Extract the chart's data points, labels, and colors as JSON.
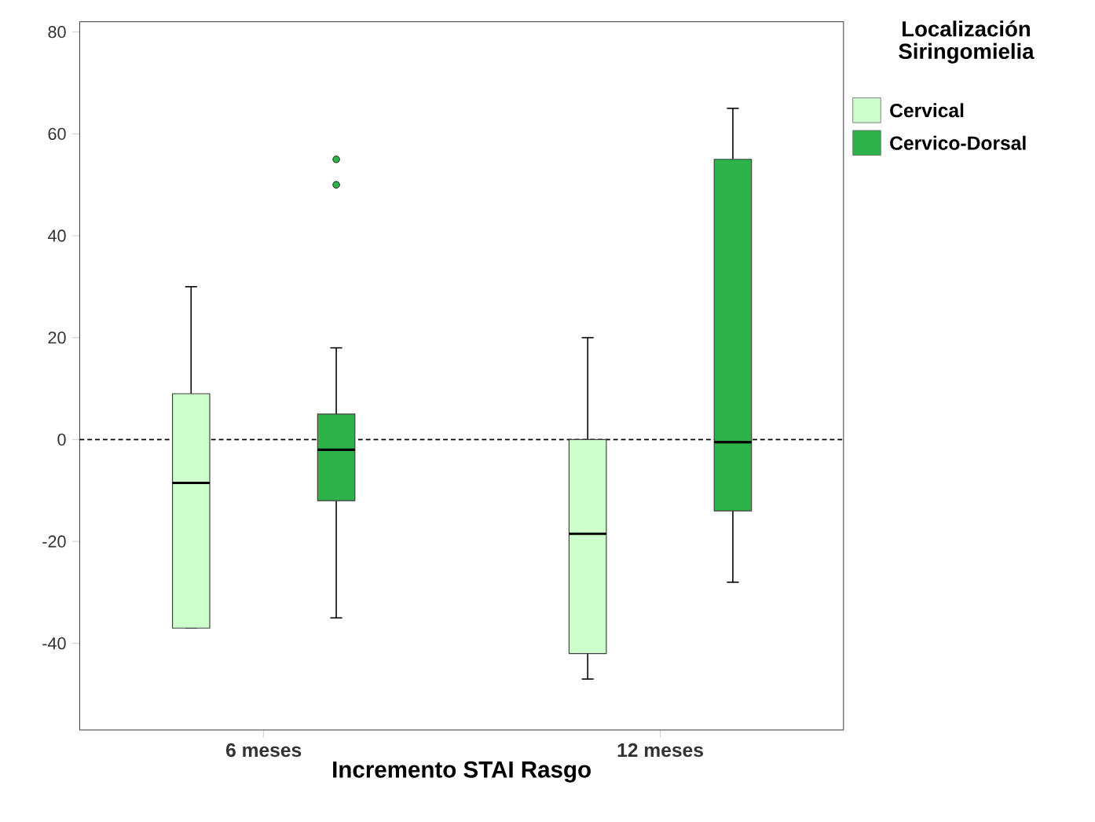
{
  "chart_data": {
    "type": "box",
    "xlabel": "Incremento STAI Rasgo",
    "legend_title": "Localización Siringomielia",
    "categories": [
      "6 meses",
      "12 meses"
    ],
    "series": [
      {
        "name": "Cervical",
        "color": "#ccffcc",
        "boxes": [
          {
            "low": -37,
            "q1": -37,
            "median": -8.5,
            "q3": 9,
            "high": 30
          },
          {
            "low": -47,
            "q1": -42,
            "median": -18.5,
            "q3": 0,
            "high": 20
          }
        ]
      },
      {
        "name": "Cervico-Dorsal",
        "color": "#2db34a",
        "boxes": [
          {
            "low": -35,
            "q1": -12,
            "median": -2,
            "q3": 5,
            "high": 18,
            "outliers": [
              55,
              50
            ]
          },
          {
            "low": -28,
            "q1": -14,
            "median": -0.5,
            "q3": 55,
            "high": 65
          }
        ]
      }
    ],
    "ylim": [
      -57,
      82
    ],
    "yticks": [
      -40,
      -20,
      0,
      20,
      40,
      60,
      80
    ],
    "ref_lines": [
      {
        "axis": "y",
        "value": 0,
        "line_style": "dashed",
        "color": "#000000"
      }
    ],
    "grid": false,
    "legend": "top right"
  }
}
